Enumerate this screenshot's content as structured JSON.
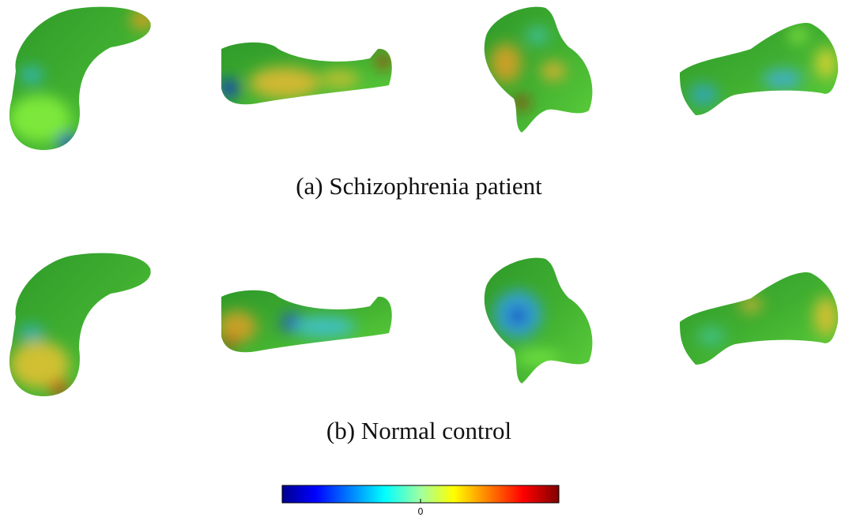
{
  "figure": {
    "panels": [
      {
        "caption": "(a) Schizophrenia patient"
      },
      {
        "caption": "(b) Normal control"
      }
    ],
    "colorbar": {
      "tick_label": 0
    }
  }
}
